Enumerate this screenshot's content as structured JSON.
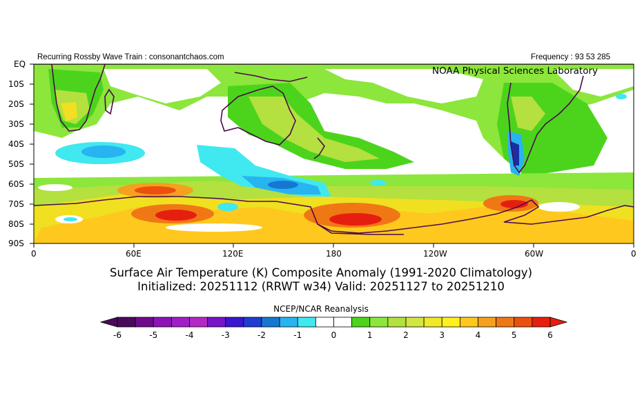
{
  "header": {
    "left_text": "Recurring Rossby Wave Train : consonantchaos.com",
    "right_text": "Frequency : 93 53 285"
  },
  "map": {
    "watermark": "NOAA Physical Sciences Laboratory",
    "lat_labels": [
      "EQ",
      "10S",
      "20S",
      "30S",
      "40S",
      "50S",
      "60S",
      "70S",
      "80S",
      "90S"
    ],
    "lon_labels": [
      "0",
      "60E",
      "120E",
      "180",
      "120W",
      "60W",
      "0"
    ],
    "colors": {
      "coast": "#4a0a4a",
      "lightgreen": "#8ce63c",
      "green": "#4cd41c",
      "yellowgreen": "#b4e040",
      "yellow": "#f0e020",
      "orange": "#f0a020",
      "deeporange": "#f07010",
      "red": "#e82810",
      "cyan": "#40e8f0",
      "lightblue": "#28b4f0",
      "blue": "#1478d2",
      "navy": "#1a2ea0"
    }
  },
  "title": {
    "line1": "Surface Air Temperature (K) Composite Anomaly (1991-2020 Climatology)",
    "line2": "Initialized: 20251112 (RRWT w34) Valid: 20251127 to 20251210"
  },
  "colorbar": {
    "source": "NCEP/NCAR Reanalysis",
    "ticks": [
      "-6",
      "-5",
      "-4",
      "-3",
      "-2",
      "-1",
      "0",
      "1",
      "2",
      "3",
      "4",
      "5",
      "6"
    ],
    "colors": [
      "#4a0a5a",
      "#6e0a8c",
      "#8c14b4",
      "#a01ec8",
      "#b428c8",
      "#7814c8",
      "#3c14d2",
      "#1e3cd2",
      "#1478d2",
      "#28b4f0",
      "#40e8f0",
      "#ffffff",
      "#ffffff",
      "#4cd41c",
      "#8ce63c",
      "#b4e040",
      "#d2e640",
      "#f0e828",
      "#fff01e",
      "#ffc81e",
      "#f5a01e",
      "#f07814",
      "#eb500f",
      "#e61e0f"
    ]
  }
}
